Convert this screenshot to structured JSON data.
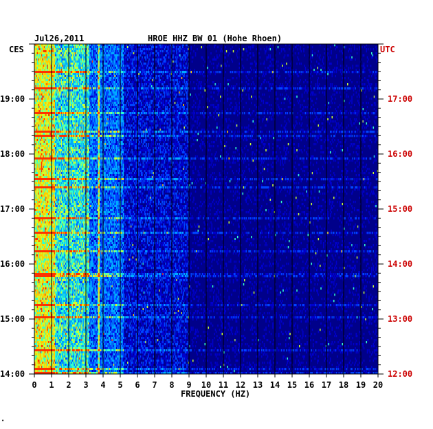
{
  "header": {
    "date": "Jul26,2011",
    "title": "HROE HHZ BW 01 (Hohe Rhoen)",
    "left_zone": "CES",
    "right_zone": "UTC"
  },
  "chart_data": {
    "type": "heatmap",
    "title": "HROE HHZ BW 01 (Hohe Rhoen)",
    "xlabel": "FREQUENCY (HZ)",
    "x_ticks": [
      "0",
      "1",
      "2",
      "3",
      "4",
      "5",
      "6",
      "7",
      "8",
      "9",
      "10",
      "11",
      "12",
      "13",
      "14",
      "15",
      "16",
      "17",
      "18",
      "19",
      "20"
    ],
    "xlim": [
      0,
      20
    ],
    "left_time_ticks": [
      "19:00",
      "18:00",
      "17:00",
      "16:00",
      "15:00",
      "14:00"
    ],
    "right_time_ticks": [
      "17:00",
      "16:00",
      "15:00",
      "14:00",
      "13:00",
      "12:00"
    ],
    "grid": true,
    "colormap": [
      "#00007f",
      "#0000cc",
      "#0044ff",
      "#00aaff",
      "#33ffcc",
      "#ccff33",
      "#ffcc00",
      "#ff3300"
    ]
  },
  "footer": {
    "mark": "•"
  }
}
